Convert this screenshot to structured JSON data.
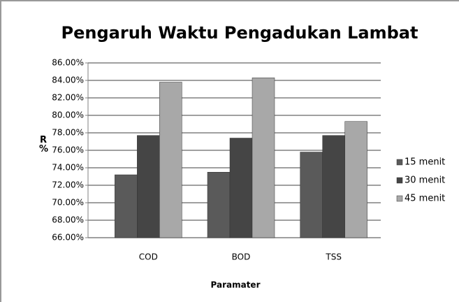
{
  "chart_data": {
    "type": "bar",
    "title": "Pengaruh Waktu Pengadukan Lambat",
    "x_label": "Paramater",
    "y_label": "R %",
    "categories": [
      "COD",
      "BOD",
      "TSS"
    ],
    "series": [
      {
        "name": "15 menit",
        "color": "#5a5a5a",
        "values": [
          73.2,
          73.5,
          75.8
        ]
      },
      {
        "name": "30 menit",
        "color": "#454545",
        "values": [
          77.7,
          77.4,
          77.7
        ]
      },
      {
        "name": "45 menit",
        "color": "#a8a8a8",
        "values": [
          83.8,
          84.3,
          79.3
        ]
      }
    ],
    "ylim": [
      66,
      86
    ],
    "yticks": [
      {
        "value": 66,
        "label": "66.00%"
      },
      {
        "value": 68,
        "label": "68.00%"
      },
      {
        "value": 70,
        "label": "70.00%"
      },
      {
        "value": 72,
        "label": "72.00%"
      },
      {
        "value": 74,
        "label": "74.00%"
      },
      {
        "value": 76,
        "label": "76.00%"
      },
      {
        "value": 78,
        "label": "78.00%"
      },
      {
        "value": 80,
        "label": "80.00%"
      },
      {
        "value": 82,
        "label": "82.00%"
      },
      {
        "value": 84,
        "label": "84.00%"
      },
      {
        "value": 86,
        "label": "86.00%"
      }
    ],
    "grid": true,
    "legend": "right"
  }
}
